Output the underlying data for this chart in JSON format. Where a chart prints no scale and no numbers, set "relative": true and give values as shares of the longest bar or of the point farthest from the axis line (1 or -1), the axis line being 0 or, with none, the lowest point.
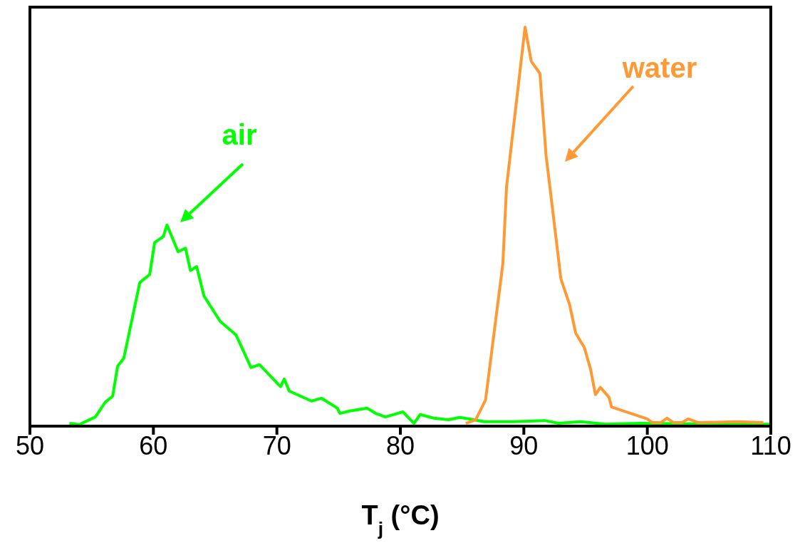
{
  "chart_data": {
    "type": "line",
    "xlabel": "T$_{j}$ (°C)",
    "relative": true,
    "xlim": [
      50,
      110
    ],
    "xticks": [
      50,
      60,
      70,
      80,
      90,
      100,
      110
    ],
    "grid": false,
    "legend": false,
    "marker": "none",
    "line_style": "solid",
    "series": [
      {
        "name": "air",
        "color": "#00ff00",
        "x": [
          53.2,
          54.0,
          55.3,
          56.1,
          56.7,
          57.1,
          57.6,
          58.9,
          59.7,
          60.1,
          60.8,
          61.1,
          62.0,
          62.6,
          63.0,
          63.5,
          64.1,
          65.4,
          66.7,
          67.9,
          68.6,
          70.3,
          70.6,
          71.0,
          72.8,
          73.6,
          74.9,
          75.1,
          75.9,
          77.3,
          78.0,
          78.8,
          80.2,
          81.1,
          81.6,
          82.7,
          83.9,
          84.8,
          85.6,
          86.8,
          87.9,
          89.1,
          91.7,
          92.8,
          94.6,
          96.6,
          99.5,
          105.2,
          110
        ],
        "values": [
          0.007,
          0.004,
          0.023,
          0.06,
          0.075,
          0.15,
          0.17,
          0.36,
          0.38,
          0.46,
          0.475,
          0.504,
          0.437,
          0.446,
          0.39,
          0.4,
          0.326,
          0.263,
          0.228,
          0.147,
          0.154,
          0.099,
          0.118,
          0.088,
          0.063,
          0.07,
          0.045,
          0.032,
          0.038,
          0.045,
          0.032,
          0.023,
          0.036,
          0.007,
          0.029,
          0.02,
          0.016,
          0.022,
          0.018,
          0.011,
          0.011,
          0.011,
          0.014,
          0.007,
          0.011,
          0.005,
          0.007,
          0.005,
          0.005
        ]
      },
      {
        "name": "water",
        "color": "#ff9933",
        "x": [
          85.3,
          86.1,
          86.9,
          88.3,
          88.6,
          90.1,
          90.6,
          91.3,
          91.8,
          93.0,
          93.7,
          94.2,
          94.9,
          95.4,
          95.8,
          96.2,
          96.9,
          97.1,
          100.0,
          100.4,
          101.1,
          101.6,
          102.1,
          102.8,
          103.3,
          104.1,
          107.3,
          109.4
        ],
        "values": [
          0.007,
          0.016,
          0.066,
          0.407,
          0.6,
          1,
          0.914,
          0.884,
          0.679,
          0.369,
          0.305,
          0.233,
          0.197,
          0.143,
          0.079,
          0.097,
          0.072,
          0.048,
          0.018,
          0.009,
          0.009,
          0.02,
          0.009,
          0.009,
          0.018,
          0.009,
          0.011,
          0.009
        ]
      }
    ]
  }
}
